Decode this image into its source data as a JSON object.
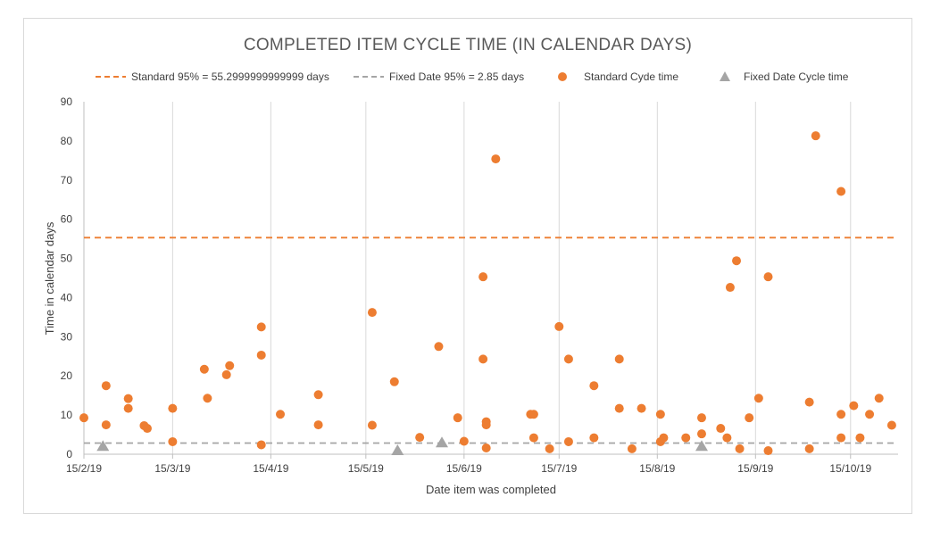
{
  "colors": {
    "standard": "#ED7D31",
    "fixed": "#A5A5A5",
    "gridline": "#D9D9D9",
    "axis": "#BFBFBF",
    "text": "#404040",
    "title": "#595959"
  },
  "chart_data": {
    "type": "scatter",
    "title": "COMPLETED ITEM CYCLE TIME (IN CALENDAR DAYS)",
    "xlabel": "Date item was completed",
    "ylabel": "Time in calendar days",
    "ylim": [
      0,
      90
    ],
    "yticks": [
      0,
      10,
      20,
      30,
      40,
      50,
      60,
      70,
      80,
      90
    ],
    "xlim": [
      "2019-02-15",
      "2019-10-30"
    ],
    "xticks": [
      "15/2/19",
      "15/3/19",
      "15/4/19",
      "15/5/19",
      "15/6/19",
      "15/7/19",
      "15/8/19",
      "15/9/19",
      "15/10/19"
    ],
    "xtick_dates": [
      "2019-02-15",
      "2019-03-15",
      "2019-04-15",
      "2019-05-15",
      "2019-06-15",
      "2019-07-15",
      "2019-08-15",
      "2019-09-15",
      "2019-10-15"
    ],
    "grid": "vertical gridlines at x ticks",
    "legend_position": "top",
    "reference_lines": [
      {
        "name": "Standard 95% = 55.2999999999999 days",
        "y": 55.3,
        "style": "dashed",
        "color": "#ED7D31"
      },
      {
        "name": "Fixed Date 95% = 2.85 days",
        "y": 2.85,
        "style": "dashed",
        "color": "#A5A5A5"
      }
    ],
    "series": [
      {
        "name": "Standard Cycle time",
        "legend_label": "Standard Cyde time",
        "marker": "circle",
        "points": [
          [
            "2019-02-15",
            9.3
          ],
          [
            "2019-02-22",
            17.5
          ],
          [
            "2019-02-22",
            7.5
          ],
          [
            "2019-03-01",
            14.2
          ],
          [
            "2019-03-01",
            11.7
          ],
          [
            "2019-03-06",
            7.3
          ],
          [
            "2019-03-07",
            6.6
          ],
          [
            "2019-03-15",
            11.7
          ],
          [
            "2019-03-15",
            3.2
          ],
          [
            "2019-03-25",
            21.7
          ],
          [
            "2019-03-26",
            14.3
          ],
          [
            "2019-04-01",
            20.3
          ],
          [
            "2019-04-02",
            22.6
          ],
          [
            "2019-04-12",
            32.5
          ],
          [
            "2019-04-12",
            25.3
          ],
          [
            "2019-04-12",
            2.4
          ],
          [
            "2019-04-18",
            10.2
          ],
          [
            "2019-04-30",
            15.2
          ],
          [
            "2019-04-30",
            7.5
          ],
          [
            "2019-05-17",
            36.2
          ],
          [
            "2019-05-17",
            7.4
          ],
          [
            "2019-05-24",
            18.5
          ],
          [
            "2019-06-01",
            4.3
          ],
          [
            "2019-06-07",
            27.5
          ],
          [
            "2019-06-13",
            9.3
          ],
          [
            "2019-06-15",
            3.3
          ],
          [
            "2019-06-21",
            45.3
          ],
          [
            "2019-06-21",
            24.3
          ],
          [
            "2019-06-22",
            8.3
          ],
          [
            "2019-06-22",
            7.5
          ],
          [
            "2019-06-22",
            1.6
          ],
          [
            "2019-06-25",
            75.4
          ],
          [
            "2019-07-06",
            10.2
          ],
          [
            "2019-07-07",
            10.2
          ],
          [
            "2019-07-07",
            4.2
          ],
          [
            "2019-07-12",
            1.4
          ],
          [
            "2019-07-15",
            32.6
          ],
          [
            "2019-07-18",
            24.3
          ],
          [
            "2019-07-18",
            3.2
          ],
          [
            "2019-07-26",
            17.5
          ],
          [
            "2019-07-26",
            4.2
          ],
          [
            "2019-08-03",
            24.3
          ],
          [
            "2019-08-03",
            11.7
          ],
          [
            "2019-08-07",
            1.4
          ],
          [
            "2019-08-10",
            11.7
          ],
          [
            "2019-08-16",
            10.2
          ],
          [
            "2019-08-16",
            3.2
          ],
          [
            "2019-08-17",
            4.2
          ],
          [
            "2019-08-24",
            4.2
          ],
          [
            "2019-08-29",
            9.3
          ],
          [
            "2019-08-29",
            5.2
          ],
          [
            "2019-09-04",
            6.6
          ],
          [
            "2019-09-06",
            4.2
          ],
          [
            "2019-09-07",
            42.6
          ],
          [
            "2019-09-09",
            49.4
          ],
          [
            "2019-09-10",
            1.4
          ],
          [
            "2019-09-13",
            9.3
          ],
          [
            "2019-09-16",
            14.3
          ],
          [
            "2019-09-19",
            45.3
          ],
          [
            "2019-09-19",
            0.9
          ],
          [
            "2019-10-02",
            13.3
          ],
          [
            "2019-10-02",
            1.4
          ],
          [
            "2019-10-04",
            81.3
          ],
          [
            "2019-10-12",
            67.1
          ],
          [
            "2019-10-12",
            10.2
          ],
          [
            "2019-10-12",
            4.2
          ],
          [
            "2019-10-16",
            12.4
          ],
          [
            "2019-10-18",
            4.2
          ],
          [
            "2019-10-21",
            10.2
          ],
          [
            "2019-10-24",
            14.3
          ],
          [
            "2019-10-28",
            7.4
          ]
        ]
      },
      {
        "name": "Fixed Date Cycle time",
        "marker": "triangle",
        "points": [
          [
            "2019-02-21",
            2.0
          ],
          [
            "2019-05-25",
            0.9
          ],
          [
            "2019-06-08",
            2.9
          ],
          [
            "2019-08-29",
            2.0
          ]
        ]
      }
    ]
  }
}
